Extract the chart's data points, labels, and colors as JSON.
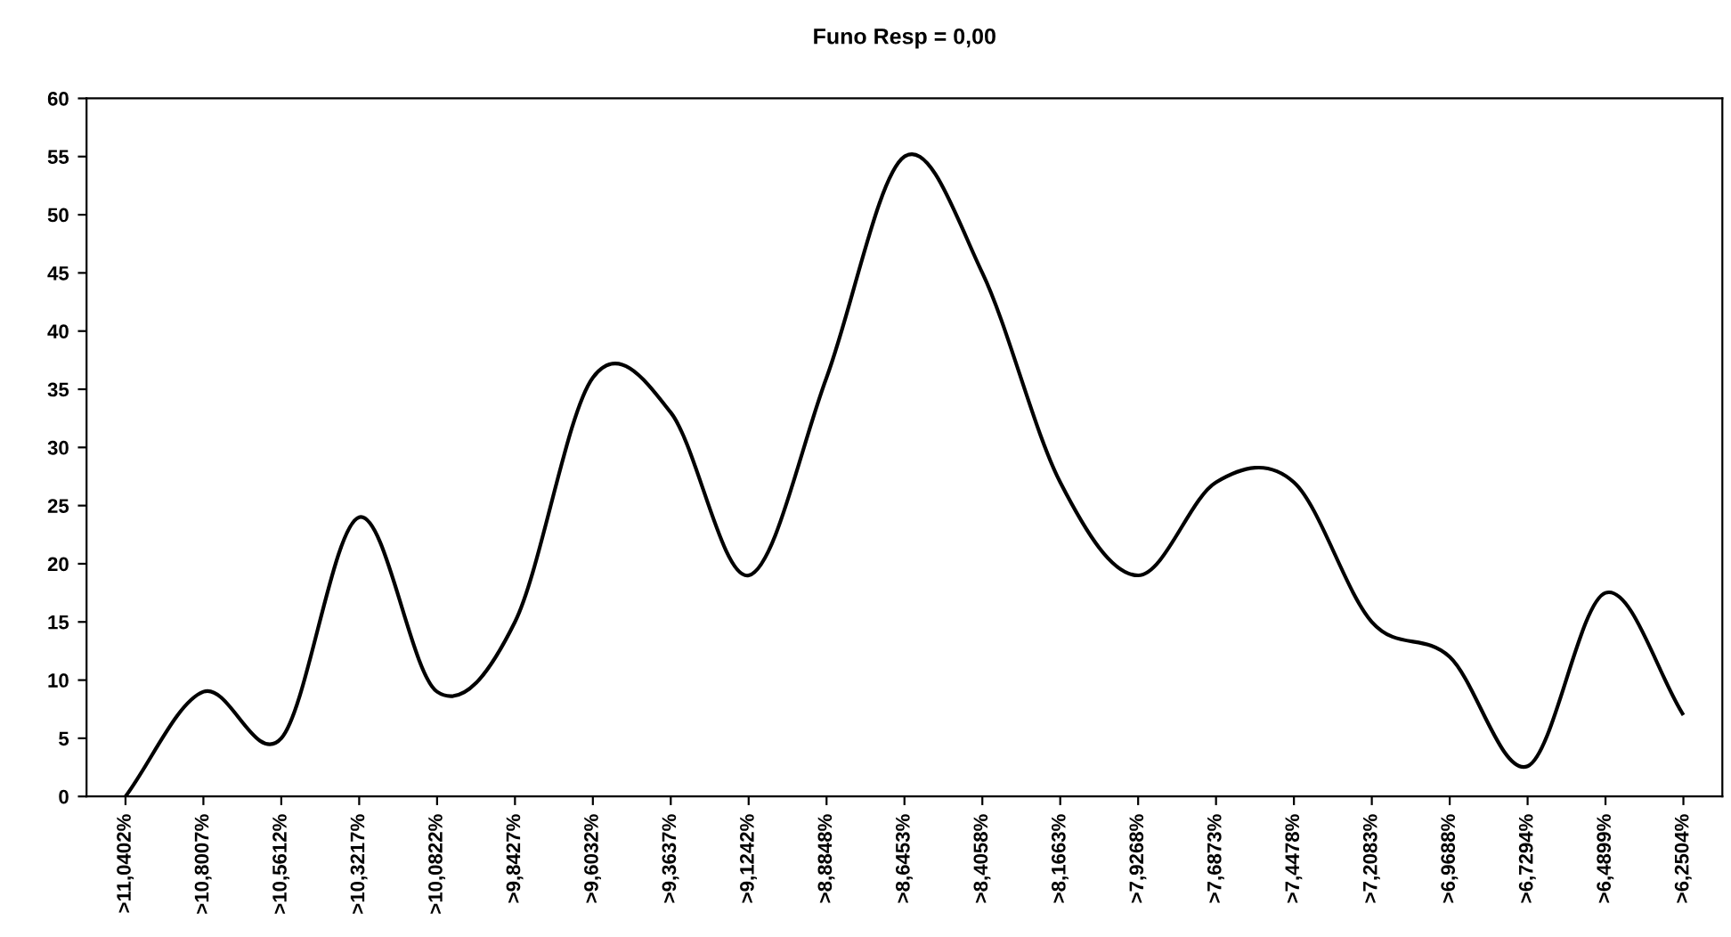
{
  "chart_data": {
    "type": "line",
    "title": "Funo Resp = 0,00",
    "categories": [
      ">11,0402%",
      ">10,8007%",
      ">10,5612%",
      ">10,3217%",
      ">10,0822%",
      ">9,8427%",
      ">9,6032%",
      ">9,3637%",
      ">9,1242%",
      ">8,8848%",
      ">8,6453%",
      ">8,4058%",
      ">8,1663%",
      ">7,9268%",
      ">7,6873%",
      ">7,4478%",
      ">7,2083%",
      ">6,9688%",
      ">6,7294%",
      ">6,4899%",
      ">6,2504%"
    ],
    "series": [
      {
        "color": "#000000",
        "values": [
          0,
          9,
          5,
          24,
          9,
          15,
          36,
          33,
          19,
          36,
          55,
          45,
          27,
          19,
          27,
          27,
          15,
          12,
          2.6,
          17.5,
          7
        ]
      }
    ],
    "ylim": [
      0,
      60
    ],
    "yticks": [
      0,
      5,
      10,
      15,
      20,
      25,
      30,
      35,
      40,
      45,
      50,
      55,
      60
    ],
    "grid": false,
    "legend": false,
    "marker": "none",
    "line_style": "solid"
  }
}
